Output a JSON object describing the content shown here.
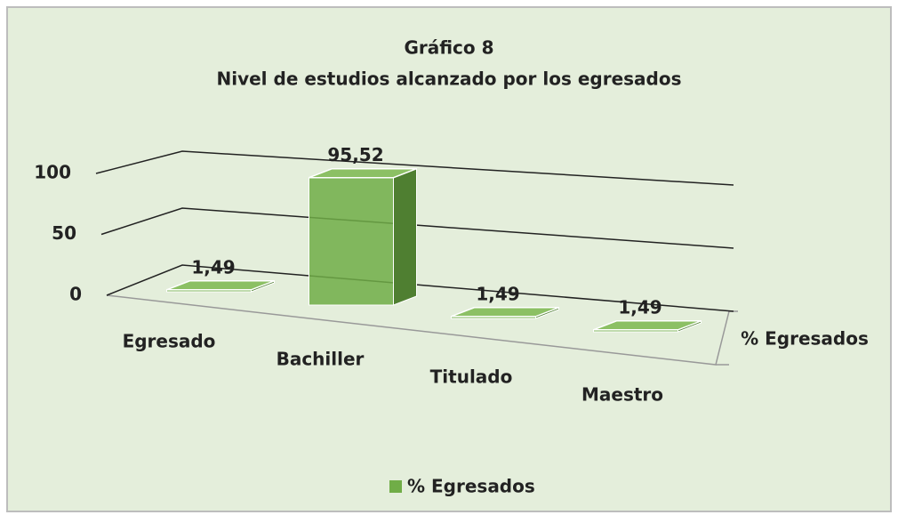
{
  "chart_data": {
    "type": "bar3d",
    "title": "Gráfico 8",
    "subtitle": "Nivel de estudios alcanzado por los egresados",
    "categories": [
      "Egresado",
      "Bachiller",
      "Titulado",
      "Maestro"
    ],
    "series": [
      {
        "name": "% Egresados",
        "color": "#70ad47",
        "values": [
          1.49,
          95.52,
          1.49,
          1.49
        ],
        "value_labels": [
          "1,49",
          "95,52",
          "1,49",
          "1,49"
        ]
      }
    ],
    "ylim": [
      0,
      100
    ],
    "yticks": [
      0,
      50,
      100
    ],
    "grid": true,
    "legend": "bottom"
  }
}
